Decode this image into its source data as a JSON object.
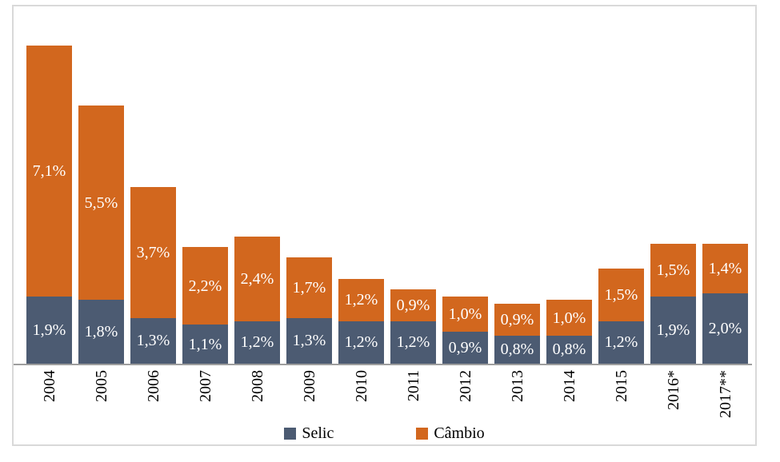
{
  "chart_data": {
    "type": "bar",
    "stacked": true,
    "title": "",
    "xlabel": "",
    "ylabel": "",
    "categories": [
      "2004",
      "2005",
      "2006",
      "2007",
      "2008",
      "2009",
      "2010",
      "2011",
      "2012",
      "2013",
      "2014",
      "2015",
      "2016*",
      "2017**"
    ],
    "series": [
      {
        "name": "Selic",
        "color": "#4C5B72",
        "values": [
          1.9,
          1.8,
          1.3,
          1.1,
          1.2,
          1.3,
          1.2,
          1.2,
          0.9,
          0.8,
          0.8,
          1.2,
          1.9,
          2.0
        ],
        "labels": [
          "1,9%",
          "1,8%",
          "1,3%",
          "1,1%",
          "1,2%",
          "1,3%",
          "1,2%",
          "1,2%",
          "0,9%",
          "0,8%",
          "0,8%",
          "1,2%",
          "1,9%",
          "2,0%"
        ]
      },
      {
        "name": "Câmbio",
        "color": "#D2671E",
        "values": [
          7.1,
          5.5,
          3.7,
          2.2,
          2.4,
          1.7,
          1.2,
          0.9,
          1.0,
          0.9,
          1.0,
          1.5,
          1.5,
          1.4
        ],
        "labels": [
          "7,1%",
          "5,5%",
          "3,7%",
          "2,2%",
          "2,4%",
          "1,7%",
          "1,2%",
          "0,9%",
          "1,0%",
          "0,9%",
          "1,0%",
          "1,5%",
          "1,5%",
          "1,4%"
        ]
      }
    ],
    "ylim": [
      0,
      10
    ],
    "grid": false,
    "legend_position": "bottom",
    "value_label_color": "#FFFFFF",
    "axis_color": "#9E9E9E",
    "frame_border_color": "#D9D9D9"
  }
}
